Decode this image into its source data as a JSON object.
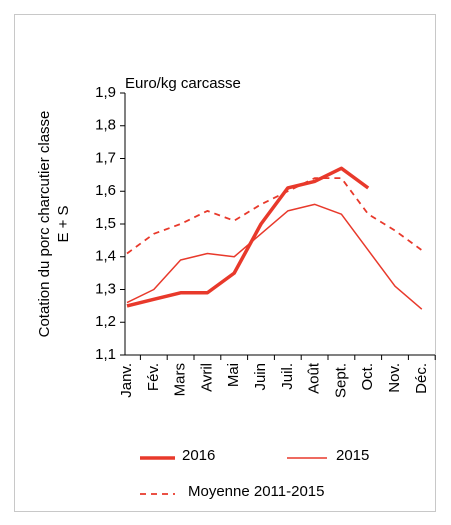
{
  "chart_data": {
    "type": "line",
    "unit_label": "Euro/kg carcasse",
    "ylabel": [
      "Cotation du porc charcutier classe",
      "E + S"
    ],
    "categories": [
      "Janv.",
      "Fév.",
      "Mars",
      "Avril",
      "Mai",
      "Juin",
      "Juil.",
      "Août",
      "Sept.",
      "Oct.",
      "Nov.",
      "Déc."
    ],
    "series": [
      {
        "name": "2016",
        "color": "#e8392b",
        "style": "thick",
        "values": [
          1.25,
          1.27,
          1.29,
          1.29,
          1.35,
          1.5,
          1.61,
          1.63,
          1.67,
          1.61,
          null,
          null
        ]
      },
      {
        "name": "2015",
        "color": "#e8392b",
        "style": "thin",
        "values": [
          1.26,
          1.3,
          1.39,
          1.41,
          1.4,
          1.47,
          1.54,
          1.56,
          1.53,
          1.42,
          1.31,
          1.24
        ]
      },
      {
        "name": "Moyenne 2011-2015",
        "color": "#e8392b",
        "style": "dashed",
        "values": [
          1.41,
          1.47,
          1.5,
          1.54,
          1.51,
          1.56,
          1.6,
          1.64,
          1.64,
          1.53,
          1.48,
          1.42
        ]
      }
    ],
    "ylim": [
      1.1,
      1.9
    ],
    "yticks": [
      {
        "value": 1.1,
        "label": "1,1"
      },
      {
        "value": 1.2,
        "label": "1,2"
      },
      {
        "value": 1.3,
        "label": "1,3"
      },
      {
        "value": 1.4,
        "label": "1,4"
      },
      {
        "value": 1.5,
        "label": "1,5"
      },
      {
        "value": 1.6,
        "label": "1,6"
      },
      {
        "value": 1.7,
        "label": "1,7"
      },
      {
        "value": 1.8,
        "label": "1,8"
      },
      {
        "value": 1.9,
        "label": "1,9"
      }
    ],
    "grid": false
  }
}
